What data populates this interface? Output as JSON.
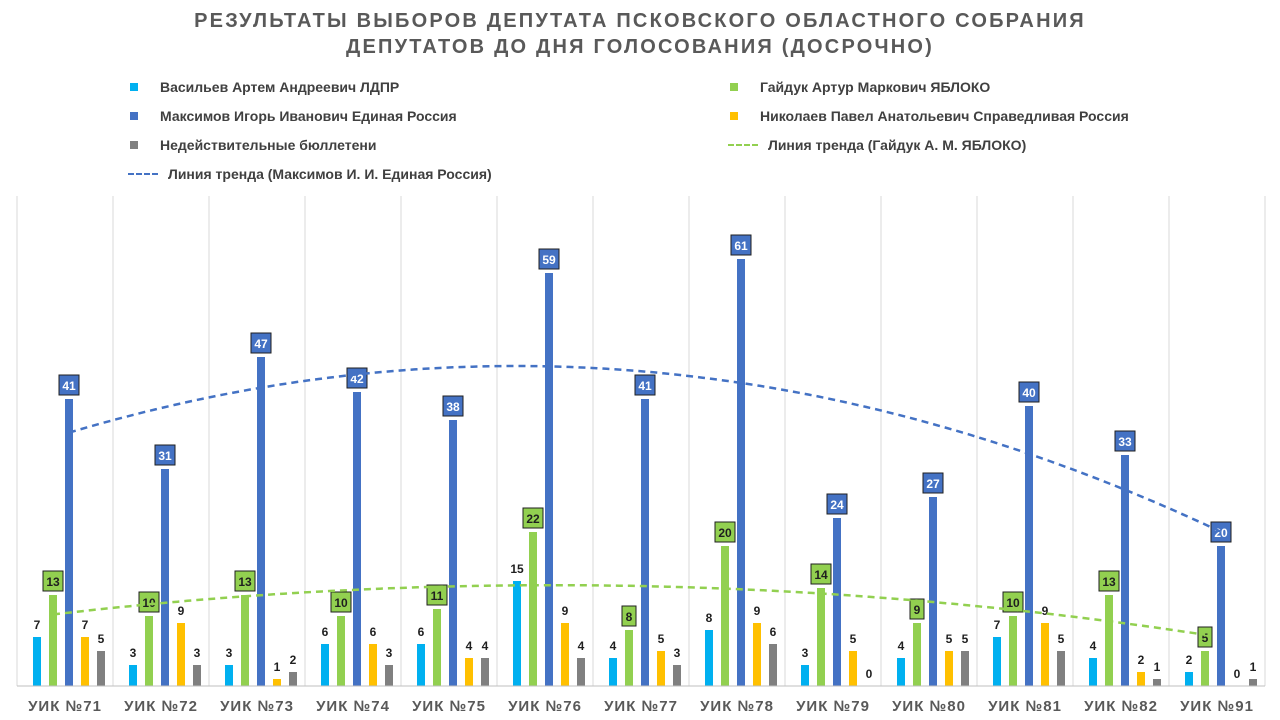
{
  "title": {
    "line1": "РЕЗУЛЬТАТЫ ВЫБОРОВ ДЕПУТАТА ПСКОВСКОГО ОБЛАСТНОГО СОБРАНИЯ",
    "line2": "ДЕПУТАТОВ ДО ДНЯ ГОЛОСОВАНИЯ (ДОСРОЧНО)"
  },
  "legend": {
    "vasiliev": "Васильев Артем  Андреевич ЛДПР",
    "gaiduk": "Гайдук Артур  Маркович ЯБЛОКО",
    "maksimov": "Максимов Игорь Иванович Единая Россия",
    "nikolaev": "Николаев Павел Анатольевич Справедливая Россия",
    "invalid": "Недействительные бюллетени",
    "trend_gaiduk": "Линия тренда (Гайдук А.  М. ЯБЛОКО)",
    "trend_maksimov": "Линия тренда (Максимов И. И. Единая Россия)"
  },
  "colors": {
    "vasiliev": "#00b0f0",
    "gaiduk": "#92d050",
    "maksimov": "#4472c4",
    "nikolaev": "#ffc000",
    "invalid": "#808080",
    "grid": "#d9d9d9",
    "axis": "#bfbfbf"
  },
  "chart_data": {
    "type": "bar",
    "title": "РЕЗУЛЬТАТЫ ВЫБОРОВ ДЕПУТАТА ПСКОВСКОГО ОБЛАСТНОГО СОБРАНИЯ ДЕПУТАТОВ ДО ДНЯ ГОЛОСОВАНИЯ (ДОСРОЧНО)",
    "categories": [
      "УИК №71",
      "УИК №72",
      "УИК №73",
      "УИК №74",
      "УИК №75",
      "УИК №76",
      "УИК №77",
      "УИК №78",
      "УИК №79",
      "УИК №80",
      "УИК №81",
      "УИК №82",
      "УИК №91"
    ],
    "ylim": [
      0,
      70
    ],
    "grid": "vertical",
    "legend_position": "top",
    "series": [
      {
        "key": "vasiliev",
        "name": "Васильев Артем  Андреевич ЛДПР",
        "values": [
          7,
          3,
          3,
          6,
          6,
          15,
          4,
          8,
          3,
          4,
          7,
          4,
          2
        ]
      },
      {
        "key": "gaiduk",
        "name": "Гайдук Артур  Маркович ЯБЛОКО",
        "values": [
          13,
          10,
          13,
          10,
          11,
          22,
          8,
          20,
          14,
          9,
          10,
          13,
          5
        ]
      },
      {
        "key": "maksimov",
        "name": "Максимов Игорь Иванович Единая Россия",
        "values": [
          41,
          31,
          47,
          42,
          38,
          59,
          41,
          61,
          24,
          27,
          40,
          33,
          20
        ]
      },
      {
        "key": "nikolaev",
        "name": "Николаев Павел Анатольевич Справедливая Россия",
        "values": [
          7,
          9,
          1,
          6,
          4,
          9,
          5,
          9,
          5,
          5,
          9,
          2,
          0
        ]
      },
      {
        "key": "invalid",
        "name": "Недействительные бюллетени",
        "values": [
          5,
          3,
          2,
          3,
          4,
          4,
          3,
          6,
          0,
          5,
          5,
          1,
          1
        ]
      }
    ],
    "trendlines": [
      {
        "name": "Линия тренда (Гайдук А.  М. ЯБЛОКО)",
        "of": "gaiduk",
        "type": "polynomial"
      },
      {
        "name": "Линия тренда (Максимов И. И. Единая Россия)",
        "of": "maksimov",
        "type": "polynomial"
      }
    ]
  }
}
